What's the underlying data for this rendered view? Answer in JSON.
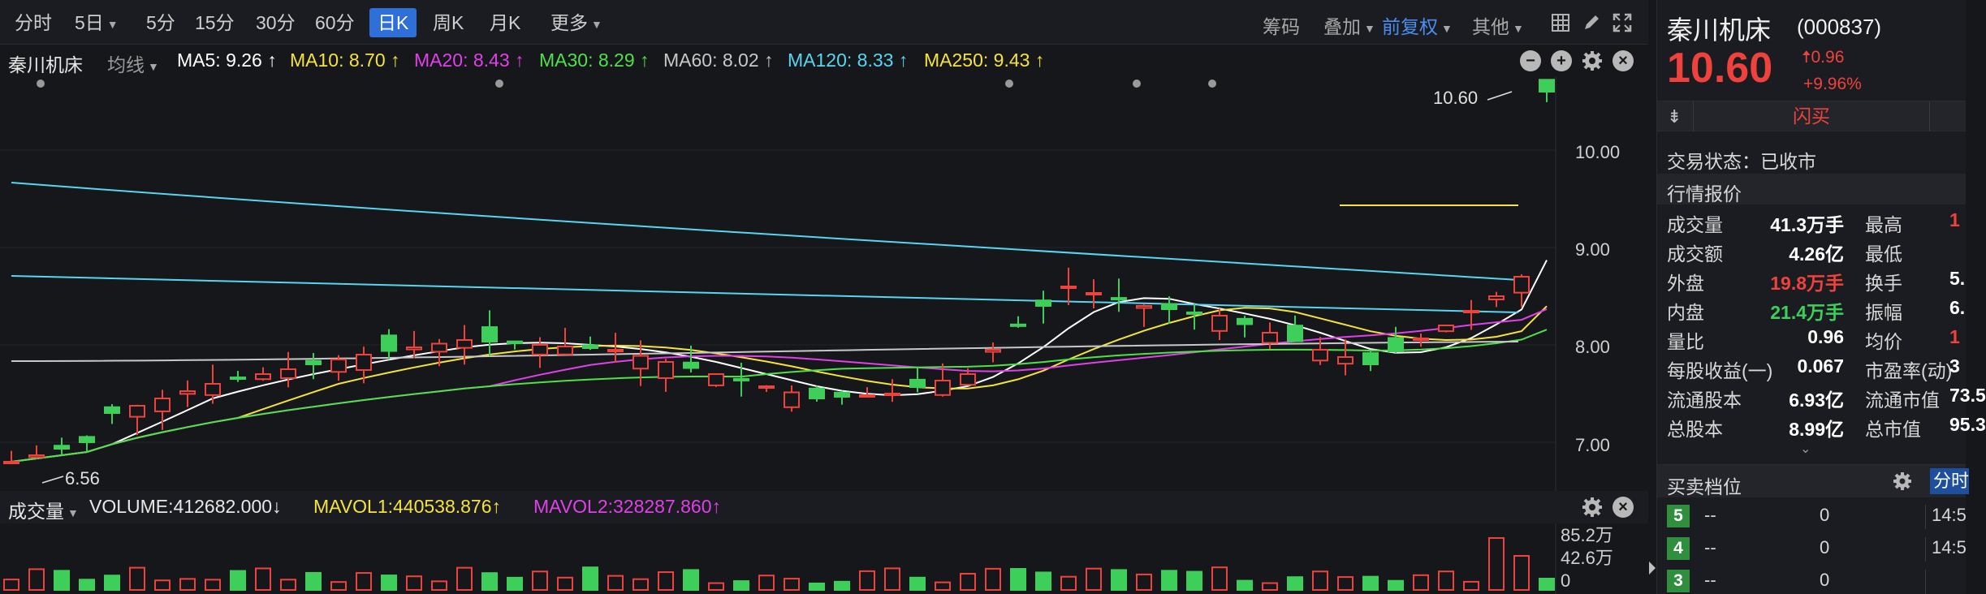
{
  "toolbar": {
    "periods": [
      "分时",
      "5日",
      "5分",
      "15分",
      "30分",
      "60分",
      "日K",
      "周K",
      "月K",
      "更多"
    ],
    "active": "日K",
    "right": [
      "筹码",
      "叠加",
      "前复权",
      "其他"
    ]
  },
  "ma_bar": {
    "stock_name": "秦川机床",
    "type": "均线",
    "items": [
      {
        "text": "MA5: 9.26 ↑",
        "color": "#ffffff"
      },
      {
        "text": "MA10: 8.70 ↑",
        "color": "#f5e33c"
      },
      {
        "text": "MA20: 8.43 ↑",
        "color": "#e040e8"
      },
      {
        "text": "MA30: 8.29 ↑",
        "color": "#4fe04a"
      },
      {
        "text": "MA60: 8.02 ↑",
        "color": "#c8c8c8"
      },
      {
        "text": "MA120: 8.33 ↑",
        "color": "#56d6f0"
      },
      {
        "text": "MA250: 9.43 ↑",
        "color": "#f5e33c"
      }
    ]
  },
  "price_axis": [
    "10.00",
    "9.00",
    "8.00",
    "7.00"
  ],
  "annotations": {
    "high": "10.60",
    "low": "6.56"
  },
  "volume_bar": {
    "label": "成交量",
    "volume": "VOLUME:412682.000↓",
    "mavol1": "MAVOL1:440538.876↑",
    "mavol2": "MAVOL2:328287.860↑"
  },
  "volume_axis": [
    "85.2万",
    "42.6万",
    "0"
  ],
  "quote": {
    "name": "秦川机床",
    "code": "(000837)",
    "price": "10.60",
    "change": "0.96",
    "change_pct": "+9.96%",
    "flash_buy": "闪买",
    "status_label": "交易状态：",
    "status": "已收市",
    "section": "行情报价",
    "rows": [
      {
        "l1": "成交量",
        "v1": "41.3万手",
        "c1": "#ffffff",
        "l2": "最高",
        "v2": "1",
        "c2": "#f0423c"
      },
      {
        "l1": "成交额",
        "v1": "4.26亿",
        "c1": "#ffffff",
        "l2": "最低",
        "v2": "",
        "c2": "#ffffff"
      },
      {
        "l1": "外盘",
        "v1": "19.8万手",
        "c1": "#f0423c",
        "l2": "换手",
        "v2": "5.",
        "c2": "#ffffff"
      },
      {
        "l1": "内盘",
        "v1": "21.4万手",
        "c1": "#3ecf5a",
        "l2": "振幅",
        "v2": "6.",
        "c2": "#ffffff"
      },
      {
        "l1": "量比",
        "v1": "0.96",
        "c1": "#ffffff",
        "l2": "均价",
        "v2": "1",
        "c2": "#f0423c"
      },
      {
        "l1": "每股收益(一)",
        "v1": "0.067",
        "c1": "#ffffff",
        "l2": "市盈率(动)",
        "v2": "3",
        "c2": "#ffffff"
      },
      {
        "l1": "流通股本",
        "v1": "6.93亿",
        "c1": "#ffffff",
        "l2": "流通市值",
        "v2": "73.5",
        "c2": "#ffffff"
      },
      {
        "l1": "总股本",
        "v1": "8.99亿",
        "c1": "#ffffff",
        "l2": "总市值",
        "v2": "95.3",
        "c2": "#ffffff"
      }
    ],
    "orderbook_title": "买卖档位",
    "fenshi_tab": "分时",
    "asks": [
      {
        "lvl": "5",
        "price": "--",
        "vol": "0",
        "time": "14:5"
      },
      {
        "lvl": "4",
        "price": "--",
        "vol": "0",
        "time": "14:5"
      },
      {
        "lvl": "3",
        "price": "--",
        "vol": "0",
        "time": ""
      }
    ]
  }
}
